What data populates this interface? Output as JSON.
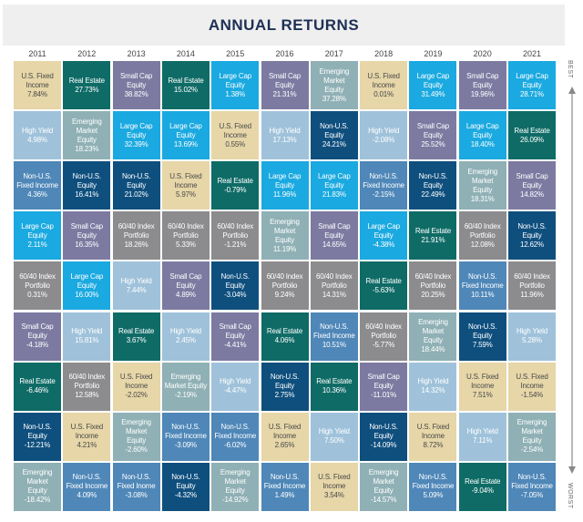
{
  "title": "ANNUAL RETURNS",
  "best_label": "BEST",
  "worst_label": "WORST",
  "chart_data": {
    "type": "table",
    "title": "ANNUAL RETURNS",
    "years": [
      "2011",
      "2012",
      "2013",
      "2014",
      "2015",
      "2016",
      "2017",
      "2018",
      "2019",
      "2020",
      "2021"
    ],
    "assets": {
      "usfi": {
        "label": "U.S. Fixed\nIncome",
        "color": "#e6d6a8",
        "text": "#4a4a4a"
      },
      "re": {
        "label": "Real Estate",
        "color": "#0f6b66",
        "text": "#ffffff"
      },
      "sc": {
        "label": "Small Cap\nEquity",
        "color": "#7d7aa1",
        "text": "#ffffff"
      },
      "lc": {
        "label": "Large Cap\nEquity",
        "color": "#1aa9e0",
        "text": "#ffffff"
      },
      "hy": {
        "label": "High Yield",
        "color": "#9fc2da",
        "text": "#ffffff"
      },
      "em": {
        "label": "Emerging\nMarket\nEquity",
        "color": "#8fb0b5",
        "text": "#ffffff"
      },
      "nuse": {
        "label": "Non-U.S.\nEquity",
        "color": "#0f4f7e",
        "text": "#ffffff"
      },
      "nusfi": {
        "label": "Non-U.S.\nFixed Income",
        "color": "#4f87b8",
        "text": "#ffffff"
      },
      "p6040": {
        "label": "60/40 Index\nPortfolio",
        "color": "#8c8c8e",
        "text": "#ffffff"
      }
    },
    "columns": [
      [
        {
          "a": "usfi",
          "v": "7.84%"
        },
        {
          "a": "hy",
          "v": "4.98%"
        },
        {
          "a": "nusfi",
          "v": "4.36%"
        },
        {
          "a": "lc",
          "v": "2.11%"
        },
        {
          "a": "p6040",
          "v": "0.31%"
        },
        {
          "a": "sc",
          "v": "-4.18%"
        },
        {
          "a": "re",
          "v": "-6.46%"
        },
        {
          "a": "nuse",
          "v": "-12.21%"
        },
        {
          "a": "em",
          "v": "-18.42%"
        }
      ],
      [
        {
          "a": "re",
          "v": "27.73%"
        },
        {
          "a": "em",
          "v": "18.23%"
        },
        {
          "a": "nuse",
          "v": "16.41%"
        },
        {
          "a": "sc",
          "v": "16.35%"
        },
        {
          "a": "lc",
          "v": "16.00%"
        },
        {
          "a": "hy",
          "v": "15.81%"
        },
        {
          "a": "p6040",
          "v": "12.58%"
        },
        {
          "a": "usfi",
          "v": "4.21%"
        },
        {
          "a": "nusfi",
          "v": "4.09%"
        }
      ],
      [
        {
          "a": "sc",
          "v": "38.82%"
        },
        {
          "a": "lc",
          "v": "32.39%"
        },
        {
          "a": "nuse",
          "v": "21.02%"
        },
        {
          "a": "p6040",
          "v": "18.26%"
        },
        {
          "a": "hy",
          "v": "7.44%"
        },
        {
          "a": "re",
          "v": "3.67%"
        },
        {
          "a": "usfi",
          "v": "-2.02%"
        },
        {
          "a": "em",
          "v": "-2.60%"
        },
        {
          "a": "nusfi",
          "v": "-3.08%",
          "label": "Non-U.S.\nFixed Inome"
        }
      ],
      [
        {
          "a": "re",
          "v": "15.02%"
        },
        {
          "a": "lc",
          "v": "13.69%"
        },
        {
          "a": "usfi",
          "v": "5.97%"
        },
        {
          "a": "p6040",
          "v": "5.33%"
        },
        {
          "a": "sc",
          "v": "4.89%"
        },
        {
          "a": "hy",
          "v": "2.45%"
        },
        {
          "a": "em",
          "v": "-2.19%",
          "label": "Emerging\nMarket Equity"
        },
        {
          "a": "nusfi",
          "v": "-3.09%"
        },
        {
          "a": "nuse",
          "v": "-4.32%"
        }
      ],
      [
        {
          "a": "lc",
          "v": "1.38%"
        },
        {
          "a": "usfi",
          "v": "0.55%"
        },
        {
          "a": "re",
          "v": "-0.79%"
        },
        {
          "a": "p6040",
          "v": "-1.21%"
        },
        {
          "a": "nuse",
          "v": "-3.04%"
        },
        {
          "a": "sc",
          "v": "-4.41%"
        },
        {
          "a": "hy",
          "v": "-4.47%"
        },
        {
          "a": "nusfi",
          "v": "-6.02%"
        },
        {
          "a": "em",
          "v": "-14.92%"
        }
      ],
      [
        {
          "a": "sc",
          "v": "21.31%"
        },
        {
          "a": "hy",
          "v": "17.13%"
        },
        {
          "a": "lc",
          "v": "11.96%"
        },
        {
          "a": "em",
          "v": "11.19%"
        },
        {
          "a": "p6040",
          "v": "9.24%"
        },
        {
          "a": "re",
          "v": "4.06%"
        },
        {
          "a": "nuse",
          "v": "2.75%"
        },
        {
          "a": "usfi",
          "v": "2.65%"
        },
        {
          "a": "nusfi",
          "v": "1.49%"
        }
      ],
      [
        {
          "a": "em",
          "v": "37.28%"
        },
        {
          "a": "nuse",
          "v": "24.21%"
        },
        {
          "a": "lc",
          "v": "21.83%"
        },
        {
          "a": "sc",
          "v": "14.65%"
        },
        {
          "a": "p6040",
          "v": "14.31%"
        },
        {
          "a": "nusfi",
          "v": "10.51%"
        },
        {
          "a": "re",
          "v": "10.36%"
        },
        {
          "a": "hy",
          "v": "7.50%"
        },
        {
          "a": "usfi",
          "v": "3.54%"
        }
      ],
      [
        {
          "a": "usfi",
          "v": "0.01%"
        },
        {
          "a": "hy",
          "v": "-2.08%"
        },
        {
          "a": "nusfi",
          "v": "-2.15%"
        },
        {
          "a": "lc",
          "v": "-4.38%"
        },
        {
          "a": "re",
          "v": "-5.63%"
        },
        {
          "a": "p6040",
          "v": "-5.77%"
        },
        {
          "a": "sc",
          "v": "-11.01%"
        },
        {
          "a": "nuse",
          "v": "-14.09%"
        },
        {
          "a": "em",
          "v": "-14.57%"
        }
      ],
      [
        {
          "a": "lc",
          "v": "31.49%"
        },
        {
          "a": "sc",
          "v": "25.52%"
        },
        {
          "a": "nuse",
          "v": "22.49%"
        },
        {
          "a": "re",
          "v": "21.91%"
        },
        {
          "a": "p6040",
          "v": "20.25%"
        },
        {
          "a": "em",
          "v": "18.44%"
        },
        {
          "a": "hy",
          "v": "14.32%"
        },
        {
          "a": "usfi",
          "v": "8.72%"
        },
        {
          "a": "nusfi",
          "v": "5.09%"
        }
      ],
      [
        {
          "a": "sc",
          "v": "19.96%"
        },
        {
          "a": "lc",
          "v": "18.40%"
        },
        {
          "a": "em",
          "v": "18.31%"
        },
        {
          "a": "p6040",
          "v": "12.08%"
        },
        {
          "a": "nusfi",
          "v": "10.11%"
        },
        {
          "a": "nuse",
          "v": "7.59%"
        },
        {
          "a": "usfi",
          "v": "7.51%"
        },
        {
          "a": "hy",
          "v": "7.11%"
        },
        {
          "a": "re",
          "v": "-9.04%"
        }
      ],
      [
        {
          "a": "lc",
          "v": "28.71%"
        },
        {
          "a": "re",
          "v": "26.09%"
        },
        {
          "a": "sc",
          "v": "14.82%"
        },
        {
          "a": "nuse",
          "v": "12.62%"
        },
        {
          "a": "p6040",
          "v": "11.96%"
        },
        {
          "a": "hy",
          "v": "5.28%"
        },
        {
          "a": "usfi",
          "v": "-1.54%"
        },
        {
          "a": "em",
          "v": "-2.54%"
        },
        {
          "a": "nusfi",
          "v": "-7.05%"
        }
      ]
    ]
  }
}
